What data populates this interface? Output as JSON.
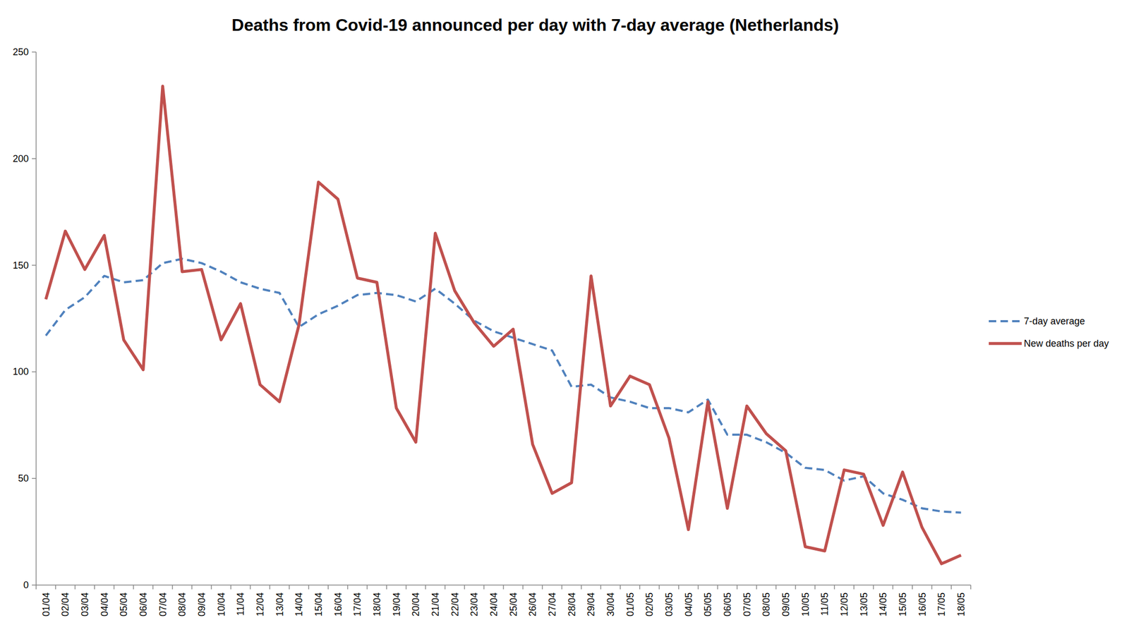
{
  "chart_data": {
    "type": "line",
    "title": "Deaths from Covid-19 announced per day with 7-day average (Netherlands)",
    "categories": [
      "01/04",
      "02/04",
      "03/04",
      "04/04",
      "05/04",
      "06/04",
      "07/04",
      "08/04",
      "09/04",
      "10/04",
      "11/04",
      "12/04",
      "13/04",
      "14/04",
      "15/04",
      "16/04",
      "17/04",
      "18/04",
      "19/04",
      "20/04",
      "21/04",
      "22/04",
      "23/04",
      "24/04",
      "25/04",
      "26/04",
      "27/04",
      "28/04",
      "29/04",
      "30/04",
      "01/05",
      "02/05",
      "03/05",
      "04/05",
      "05/05",
      "06/05",
      "07/05",
      "08/05",
      "09/05",
      "10/05",
      "11/05",
      "12/05",
      "13/05",
      "14/05",
      "15/05",
      "16/05",
      "17/05",
      "18/05"
    ],
    "series": [
      {
        "name": "7-day average",
        "color": "#4f81bd",
        "line_style": "dashed",
        "values": [
          117,
          129,
          135,
          145,
          142,
          143,
          151,
          153,
          151,
          147,
          142,
          139,
          137,
          121,
          127,
          131,
          136,
          137,
          136,
          133,
          139,
          132,
          124,
          119,
          116,
          113,
          110,
          93,
          94,
          88,
          86,
          83,
          83,
          81,
          87,
          70.5,
          70.5,
          67,
          62,
          55,
          54,
          49,
          51,
          43,
          40,
          36,
          34.5,
          34
        ]
      },
      {
        "name": "New deaths per day",
        "color": "#c0504d",
        "line_style": "solid",
        "values": [
          134,
          166,
          148,
          164,
          115,
          101,
          234,
          147,
          148,
          115,
          132,
          94,
          86,
          122,
          189,
          181,
          144,
          142,
          83,
          67,
          165,
          138,
          123,
          112,
          120,
          66,
          43,
          48,
          145,
          84,
          98,
          94,
          69,
          26,
          86,
          36,
          84,
          71,
          63,
          18,
          16,
          54,
          52,
          28,
          53,
          27,
          10,
          14
        ]
      }
    ],
    "ylim": [
      0,
      250
    ],
    "yticks": [
      0,
      50,
      100,
      150,
      200,
      250
    ],
    "grid": false,
    "legend": "right"
  }
}
